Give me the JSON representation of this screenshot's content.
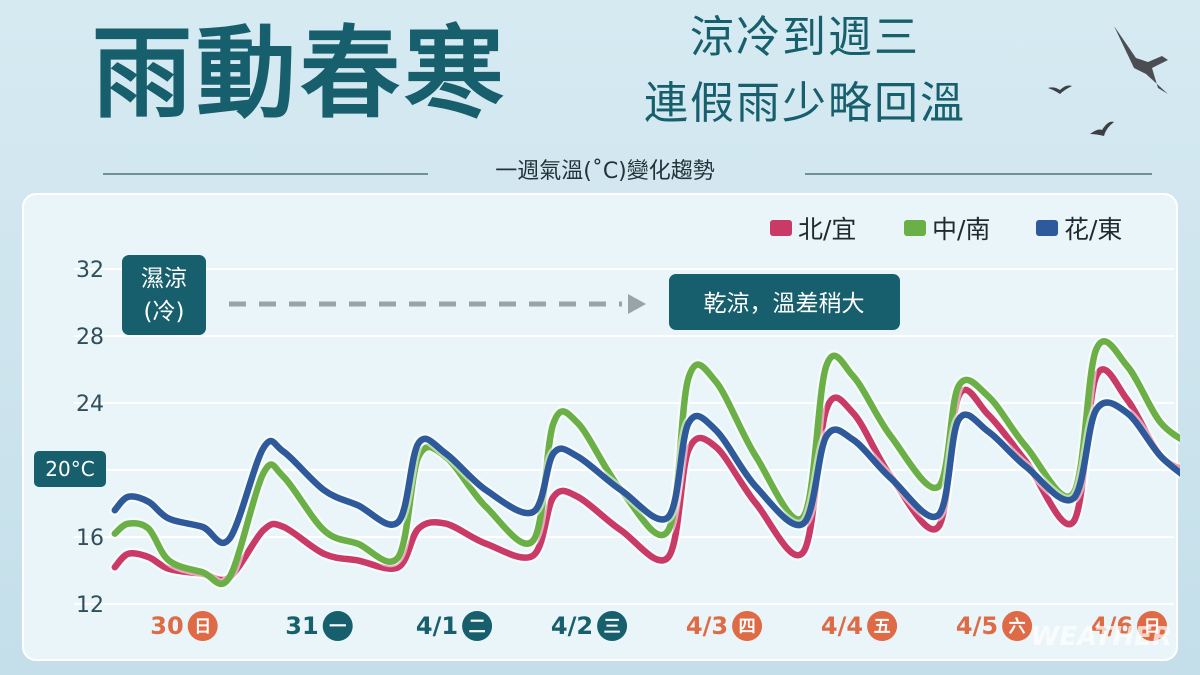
{
  "header": {
    "title": "雨動春寒",
    "subtitle_line1": "涼冷到週三",
    "subtitle_line2": "連假雨少略回溫",
    "caption": "一週氣溫(˚C)變化趨勢"
  },
  "annotations": {
    "humid_cool_line1": "濕涼",
    "humid_cool_line2": "(冷)",
    "dry_cool": "乾涼，溫差稍大",
    "ref_temp": "20°C"
  },
  "watermark": "WEATHER",
  "colors": {
    "north": "#c93a66",
    "central": "#6bb046",
    "east": "#2e5a9c",
    "dark_teal": "#175f6c",
    "weekend": "#de6b45"
  },
  "chart_data": {
    "type": "line",
    "title": "一週氣溫(˚C)變化趨勢",
    "xlabel": "",
    "ylabel": "",
    "ylim": [
      12,
      32
    ],
    "yticks": [
      12,
      16,
      20,
      24,
      28,
      32
    ],
    "grid": true,
    "legend_position": "top-right",
    "days": [
      {
        "date": "30",
        "weekday": "日",
        "weekend": true
      },
      {
        "date": "31",
        "weekday": "一",
        "weekend": false
      },
      {
        "date": "4/1",
        "weekday": "二",
        "weekend": false
      },
      {
        "date": "4/2",
        "weekday": "三",
        "weekend": false
      },
      {
        "date": "4/3",
        "weekday": "四",
        "weekend": true
      },
      {
        "date": "4/4",
        "weekday": "五",
        "weekend": true
      },
      {
        "date": "4/5",
        "weekday": "六",
        "weekend": true
      },
      {
        "date": "4/6",
        "weekday": "日",
        "weekend": true
      }
    ],
    "x": [
      -0.55,
      -0.45,
      -0.3,
      -0.15,
      0.1,
      0.3,
      0.55,
      0.7,
      1.0,
      1.25,
      1.55,
      1.7,
      1.9,
      2.2,
      2.55,
      2.7,
      2.88,
      3.2,
      3.55,
      3.7,
      3.9,
      4.2,
      4.55,
      4.72,
      4.92,
      5.2,
      5.55,
      5.7,
      5.92,
      6.2,
      6.55,
      6.72,
      6.95,
      7.2,
      7.45
    ],
    "series": [
      {
        "name": "北/宜",
        "color": "#c93a66",
        "values": [
          14.2,
          15.0,
          14.8,
          14.1,
          13.8,
          13.6,
          16.4,
          16.6,
          15.0,
          14.6,
          14.2,
          16.5,
          16.8,
          15.6,
          14.9,
          18.4,
          18.4,
          16.4,
          14.8,
          21.2,
          21.4,
          18.0,
          15.1,
          23.6,
          23.4,
          19.6,
          16.6,
          24.4,
          23.3,
          20.5,
          16.9,
          25.6,
          24.2,
          20.8,
          19.8
        ]
      },
      {
        "name": "中/南",
        "color": "#6bb046",
        "values": [
          16.2,
          16.8,
          16.5,
          14.6,
          13.9,
          13.6,
          19.8,
          19.6,
          16.4,
          15.6,
          14.8,
          20.8,
          20.8,
          17.8,
          15.8,
          22.8,
          22.8,
          18.8,
          16.4,
          25.5,
          25.3,
          20.8,
          17.2,
          26.2,
          25.6,
          22.0,
          19.0,
          25.0,
          24.4,
          21.4,
          18.6,
          27.2,
          26.2,
          22.8,
          21.4
        ]
      },
      {
        "name": "花/東",
        "color": "#2e5a9c",
        "values": [
          17.6,
          18.4,
          18.1,
          17.1,
          16.6,
          15.9,
          21.3,
          21.1,
          18.8,
          17.9,
          16.9,
          21.6,
          21.0,
          18.8,
          17.5,
          21.0,
          20.8,
          18.8,
          17.2,
          22.8,
          22.4,
          19.0,
          16.8,
          22.0,
          21.8,
          19.5,
          17.3,
          23.0,
          22.3,
          20.2,
          18.3,
          23.6,
          23.4,
          20.8,
          19.2
        ]
      }
    ]
  }
}
